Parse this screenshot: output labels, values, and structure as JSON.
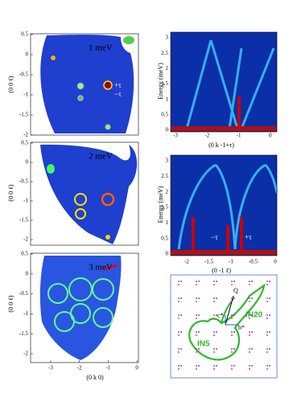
{
  "left_panels": [
    {
      "title": "1 meV",
      "y_label": "(0 0 ℓ)",
      "y_ticks": [
        "0.5",
        "0",
        "-0.5",
        "-1",
        "-1.5",
        "-2"
      ],
      "annotations": [
        "+τ",
        "−τ"
      ]
    },
    {
      "title": "2 meV",
      "y_label": "(0 0 ℓ)",
      "y_ticks": [
        "0.5",
        "0",
        "-0.5",
        "-1",
        "-1.5",
        "-2"
      ]
    },
    {
      "title": "3 meV",
      "y_label": "(0 0 ℓ)",
      "y_ticks": [
        "0.5",
        "0",
        "-0.5",
        "-1",
        "-1.5",
        "-2"
      ],
      "x_ticks": [
        "-3",
        "-2",
        "-1",
        "0"
      ],
      "x_label": "(0 k 0)"
    }
  ],
  "right_panels": [
    {
      "y_label": "Energy (meV)",
      "y_ticks": [
        "3",
        "2.5",
        "2",
        "1.5",
        "1",
        "0.5",
        "0"
      ],
      "x_ticks": [
        "-3",
        "-2",
        "-1",
        "0"
      ],
      "x_label": "(0 k -1+τ)"
    },
    {
      "y_label": "Energy (meV)",
      "y_ticks": [
        "3",
        "2.5",
        "2",
        "1.5",
        "1",
        "0.5",
        "0"
      ],
      "x_ticks": [
        "-2",
        "-1.5",
        "-1",
        "-0.5",
        "0"
      ],
      "x_label": "(0 -1 ℓ)",
      "annotations": [
        "−τ",
        "+τ"
      ]
    }
  ],
  "diagram": {
    "q": "Q",
    "c_star": "c*",
    "b_star": "b*",
    "in20": "IN20",
    "in5": "IN5"
  }
}
